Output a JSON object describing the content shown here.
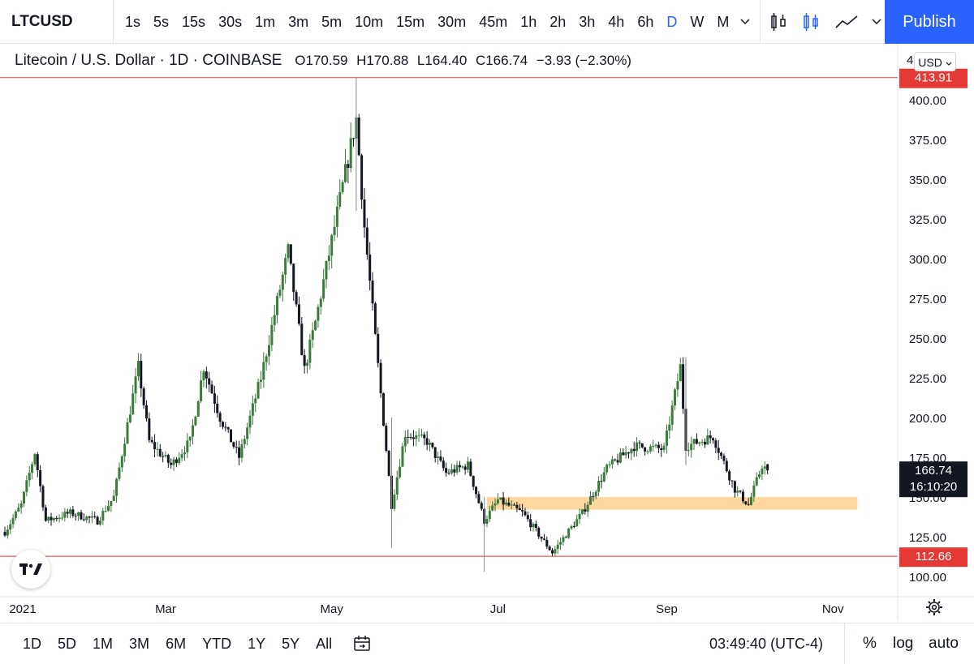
{
  "toolbar": {
    "symbol": "LTCUSD",
    "intervals": [
      "1s",
      "5s",
      "15s",
      "30s",
      "1m",
      "3m",
      "5m",
      "10m",
      "15m",
      "30m",
      "45m",
      "1h",
      "2h",
      "3h",
      "4h",
      "6h",
      "D",
      "W",
      "M"
    ],
    "active_interval": "D",
    "publish_label": "Publish"
  },
  "legend": {
    "name": "Litecoin / U.S. Dollar · 1D · COINBASE",
    "open": "O170.59",
    "high": "H170.88",
    "low": "L164.40",
    "close": "C166.74",
    "change": "−3.93 (−2.30%)",
    "currency": "USD",
    "axis_top_partial": "4"
  },
  "price_tags": {
    "upper_line_label": "413.91",
    "lower_line_label": "112.66",
    "last_price": "166.74",
    "countdown": "16:10:20"
  },
  "bottom": {
    "ranges": [
      "1D",
      "5D",
      "1M",
      "3M",
      "6M",
      "YTD",
      "1Y",
      "5Y",
      "All"
    ],
    "time": "03:49:40 (UTC-4)",
    "percent_label": "%",
    "log_label": "log",
    "auto_label": "auto"
  },
  "colors": {
    "up": "#3d7a3d",
    "down": "#131722",
    "level_line": "#e53935",
    "zone": "#ffd8a0",
    "accent": "#2962ff"
  },
  "chart_data": {
    "type": "candlestick",
    "x_axis_labels": [
      "2021",
      "Mar",
      "May",
      "Jul",
      "Sep",
      "Nov"
    ],
    "y_ticks": [
      100,
      125,
      150,
      175,
      200,
      225,
      250,
      275,
      300,
      325,
      350,
      375,
      400
    ],
    "ylim": [
      93,
      420
    ],
    "horizontal_lines": [
      413.91,
      112.66
    ],
    "zone": {
      "low": 142,
      "high": 150,
      "start": "2021-06-27",
      "end": "2021-11-10"
    },
    "last": {
      "open": 170.59,
      "high": 170.88,
      "low": 164.4,
      "close": 166.74
    },
    "anchors": [
      {
        "date": "2021-01-01",
        "price": 128
      },
      {
        "date": "2021-01-07",
        "price": 145
      },
      {
        "date": "2021-01-12",
        "price": 178
      },
      {
        "date": "2021-01-16",
        "price": 135
      },
      {
        "date": "2021-01-25",
        "price": 140
      },
      {
        "date": "2021-02-04",
        "price": 135
      },
      {
        "date": "2021-02-10",
        "price": 150
      },
      {
        "date": "2021-02-19",
        "price": 232
      },
      {
        "date": "2021-02-23",
        "price": 185
      },
      {
        "date": "2021-03-03",
        "price": 170
      },
      {
        "date": "2021-03-10",
        "price": 185
      },
      {
        "date": "2021-03-15",
        "price": 232
      },
      {
        "date": "2021-03-21",
        "price": 200
      },
      {
        "date": "2021-03-28",
        "price": 175
      },
      {
        "date": "2021-04-05",
        "price": 225
      },
      {
        "date": "2021-04-15",
        "price": 305
      },
      {
        "date": "2021-04-21",
        "price": 230
      },
      {
        "date": "2021-04-25",
        "price": 260
      },
      {
        "date": "2021-05-02",
        "price": 320
      },
      {
        "date": "2021-05-10",
        "price": 388
      },
      {
        "date": "2021-05-13",
        "price": 320
      },
      {
        "date": "2021-05-19",
        "price": 215
      },
      {
        "date": "2021-05-23",
        "price": 145
      },
      {
        "date": "2021-05-28",
        "price": 190
      },
      {
        "date": "2021-06-05",
        "price": 185
      },
      {
        "date": "2021-06-12",
        "price": 165
      },
      {
        "date": "2021-06-20",
        "price": 170
      },
      {
        "date": "2021-06-26",
        "price": 135
      },
      {
        "date": "2021-07-01",
        "price": 148
      },
      {
        "date": "2021-07-10",
        "price": 140
      },
      {
        "date": "2021-07-21",
        "price": 115
      },
      {
        "date": "2021-08-01",
        "price": 140
      },
      {
        "date": "2021-08-10",
        "price": 168
      },
      {
        "date": "2021-08-20",
        "price": 182
      },
      {
        "date": "2021-08-31",
        "price": 180
      },
      {
        "date": "2021-09-06",
        "price": 232
      },
      {
        "date": "2021-09-08",
        "price": 182
      },
      {
        "date": "2021-09-18",
        "price": 188
      },
      {
        "date": "2021-09-26",
        "price": 155
      },
      {
        "date": "2021-10-01",
        "price": 145
      },
      {
        "date": "2021-10-06",
        "price": 170
      },
      {
        "date": "2021-10-08",
        "price": 166.74
      }
    ]
  }
}
